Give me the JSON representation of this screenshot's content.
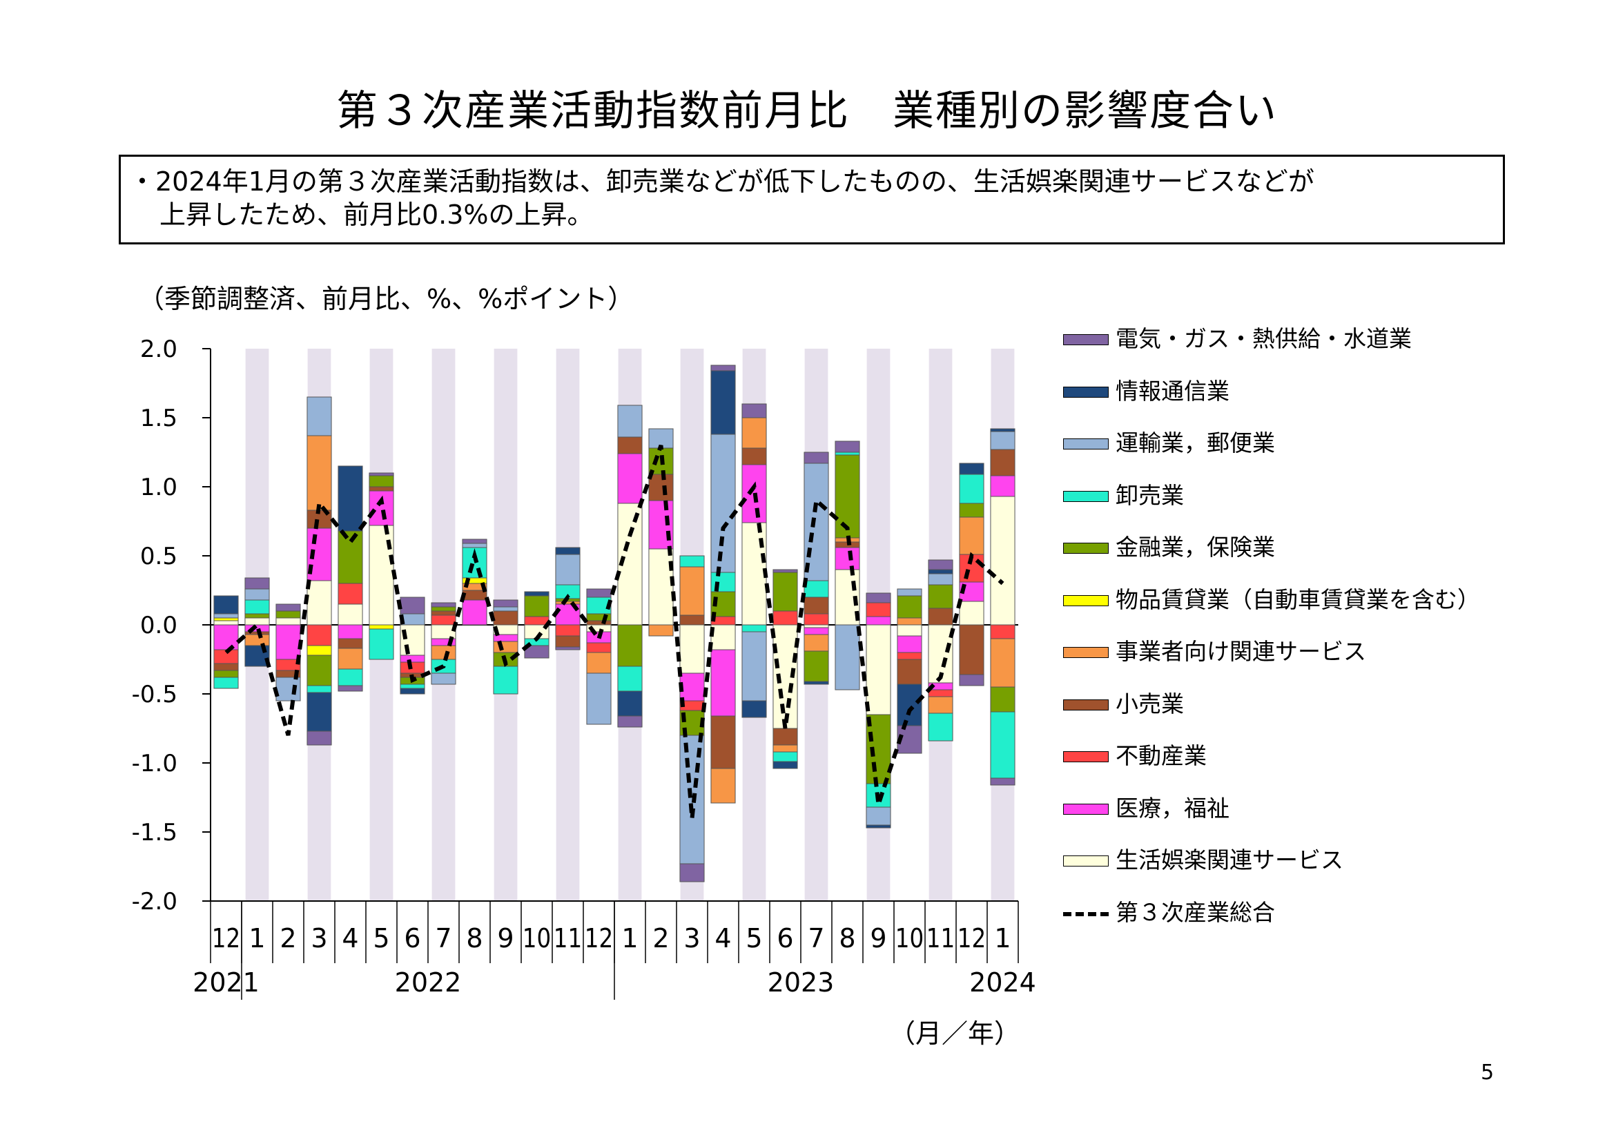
{
  "slide": {
    "title": "第３次産業活動指数前月比　業種別の影響度合い",
    "summary_line1": "・2024年1月の第３次産業活動指数は、卸売業などが低下したものの、生活娯楽関連サービスなどが",
    "summary_line2": "上昇したため、前月比0.3%の上昇。",
    "units": "（季節調整済、前月比、%、%ポイント）",
    "month_unit": "（月／年）",
    "page_number": "5"
  },
  "chart_data": {
    "type": "bar",
    "stacked": true,
    "ylim": [
      -2.0,
      2.0
    ],
    "yticks": [
      "2.0",
      "1.5",
      "1.0",
      "0.5",
      "0.0",
      "-0.5",
      "-1.0",
      "-1.5",
      "-2.0"
    ],
    "ytick_values": [
      2.0,
      1.5,
      1.0,
      0.5,
      0.0,
      -0.5,
      -1.0,
      -1.5,
      -2.0
    ],
    "categories": [
      "12",
      "1",
      "2",
      "3",
      "4",
      "5",
      "6",
      "7",
      "8",
      "9",
      "10",
      "11",
      "12",
      "1",
      "2",
      "3",
      "4",
      "5",
      "6",
      "7",
      "8",
      "9",
      "10",
      "11",
      "12",
      "1"
    ],
    "year_labels": [
      {
        "label": "2021",
        "index": 0
      },
      {
        "label": "2022",
        "index": 6.5
      },
      {
        "label": "2023",
        "index": 18.5
      },
      {
        "label": "2024",
        "index": 25
      }
    ],
    "shaded_columns": [
      1,
      3,
      5,
      7,
      9,
      11,
      13,
      15,
      17,
      19,
      21,
      23,
      25
    ],
    "series": [
      {
        "name": "生活娯楽関連サービス",
        "color": "#FFFFDD",
        "values": [
          0.03,
          0.05,
          0.05,
          0.32,
          0.15,
          0.72,
          -0.22,
          -0.1,
          0.0,
          -0.07,
          -0.1,
          0.0,
          -0.05,
          0.88,
          0.55,
          -0.35,
          -0.18,
          0.74,
          -0.75,
          -0.02,
          0.4,
          -0.65,
          -0.08,
          -0.42,
          0.17,
          0.93
        ]
      },
      {
        "name": "医療，福祉",
        "color": "#FF44EE",
        "values": [
          -0.18,
          -0.05,
          -0.25,
          0.38,
          -0.1,
          0.25,
          -0.05,
          -0.05,
          0.18,
          -0.05,
          0.0,
          0.15,
          -0.08,
          0.36,
          0.35,
          -0.2,
          -0.48,
          0.42,
          0.0,
          -0.05,
          0.16,
          0.06,
          -0.12,
          -0.05,
          0.14,
          0.15
        ]
      },
      {
        "name": "不動産業",
        "color": "#FF4444",
        "values": [
          -0.1,
          0.0,
          -0.08,
          -0.15,
          0.15,
          0.0,
          -0.08,
          0.07,
          0.0,
          0.0,
          0.06,
          -0.08,
          -0.07,
          0.0,
          0.0,
          -0.07,
          0.06,
          0.0,
          0.1,
          0.08,
          0.0,
          0.1,
          -0.05,
          -0.05,
          0.2,
          -0.1
        ]
      },
      {
        "name": "小売業",
        "color": "#A0522D",
        "values": [
          -0.05,
          -0.02,
          -0.05,
          0.13,
          -0.07,
          0.03,
          -0.03,
          0.03,
          0.07,
          0.1,
          0.0,
          -0.08,
          0.03,
          0.12,
          0.19,
          0.07,
          -0.38,
          0.12,
          -0.12,
          0.12,
          0.04,
          0.0,
          -0.18,
          0.12,
          -0.36,
          0.19
        ]
      },
      {
        "name": "事業者向け関連サービス",
        "color": "#F79646",
        "values": [
          0.0,
          -0.08,
          0.0,
          0.54,
          -0.15,
          0.0,
          0.0,
          -0.1,
          0.05,
          -0.08,
          0.0,
          0.02,
          -0.15,
          0.0,
          -0.08,
          0.35,
          -0.25,
          0.22,
          -0.05,
          -0.12,
          0.03,
          0.0,
          0.05,
          -0.12,
          0.27,
          -0.35
        ]
      },
      {
        "name": "物品賃貸業（自動車賃貸業を含む）",
        "color": "#FFFF00",
        "values": [
          0.02,
          0.0,
          0.0,
          -0.07,
          0.0,
          -0.03,
          0.0,
          0.0,
          0.04,
          0.0,
          0.0,
          0.0,
          0.0,
          0.0,
          0.0,
          0.0,
          0.0,
          0.0,
          0.0,
          0.0,
          0.0,
          0.0,
          0.0,
          0.0,
          0.0,
          0.0
        ]
      },
      {
        "name": "金融業，保険業",
        "color": "#77A000",
        "values": [
          -0.05,
          0.03,
          0.05,
          -0.22,
          0.38,
          0.08,
          -0.05,
          0.03,
          0.0,
          -0.1,
          0.15,
          0.02,
          0.05,
          -0.3,
          0.19,
          -0.18,
          0.18,
          0.0,
          0.28,
          -0.22,
          0.6,
          -0.5,
          0.16,
          0.17,
          0.1,
          -0.18
        ]
      },
      {
        "name": "卸売業",
        "color": "#22EECC",
        "values": [
          -0.08,
          0.1,
          0.0,
          -0.05,
          -0.12,
          -0.22,
          -0.03,
          -0.1,
          0.22,
          -0.2,
          -0.05,
          0.1,
          0.12,
          -0.18,
          0.0,
          0.08,
          0.14,
          -0.05,
          -0.07,
          0.12,
          0.02,
          -0.17,
          0.0,
          -0.2,
          0.21,
          -0.48
        ]
      },
      {
        "name": "運輸業，郵便業",
        "color": "#95B3D7",
        "values": [
          0.03,
          0.08,
          -0.17,
          0.28,
          0.0,
          0.0,
          0.08,
          -0.08,
          0.03,
          0.03,
          0.0,
          0.22,
          -0.37,
          0.23,
          0.14,
          -0.93,
          1.0,
          -0.5,
          0.0,
          0.85,
          -0.47,
          -0.13,
          0.05,
          0.08,
          0.0,
          0.13
        ]
      },
      {
        "name": "情報通信業",
        "color": "#1F497D",
        "values": [
          0.13,
          -0.15,
          0.0,
          -0.28,
          0.47,
          0.0,
          -0.04,
          0.0,
          0.0,
          0.0,
          0.03,
          0.05,
          0.0,
          -0.18,
          0.0,
          0.0,
          0.46,
          -0.12,
          -0.05,
          -0.02,
          0.0,
          -0.02,
          -0.3,
          0.03,
          0.08,
          0.02
        ]
      },
      {
        "name": "電気・ガス・熱供給・水道業",
        "color": "#8064A2",
        "values": [
          0.0,
          0.08,
          0.05,
          -0.1,
          -0.04,
          0.02,
          0.12,
          0.03,
          0.03,
          0.05,
          -0.09,
          -0.02,
          0.06,
          -0.08,
          0.0,
          -0.13,
          0.04,
          0.1,
          0.02,
          0.08,
          0.08,
          0.07,
          -0.2,
          0.07,
          -0.08,
          -0.05
        ]
      }
    ],
    "total": {
      "name": "第３次産業総合",
      "values": [
        -0.2,
        0.0,
        -0.8,
        0.88,
        0.6,
        0.9,
        -0.4,
        -0.3,
        0.5,
        -0.28,
        -0.1,
        0.2,
        -0.1,
        0.65,
        1.3,
        -1.4,
        0.7,
        1.0,
        -0.75,
        0.9,
        0.7,
        -1.3,
        -0.62,
        -0.38,
        0.5,
        0.3
      ]
    },
    "legend_order": [
      "電気・ガス・熱供給・水道業",
      "情報通信業",
      "運輸業，郵便業",
      "卸売業",
      "金融業，保険業",
      "物品賃貸業（自動車賃貸業を含む）",
      "事業者向け関連サービス",
      "小売業",
      "不動産業",
      "医療，福祉",
      "生活娯楽関連サービス",
      "第３次産業総合"
    ],
    "legend_placement": "right"
  }
}
